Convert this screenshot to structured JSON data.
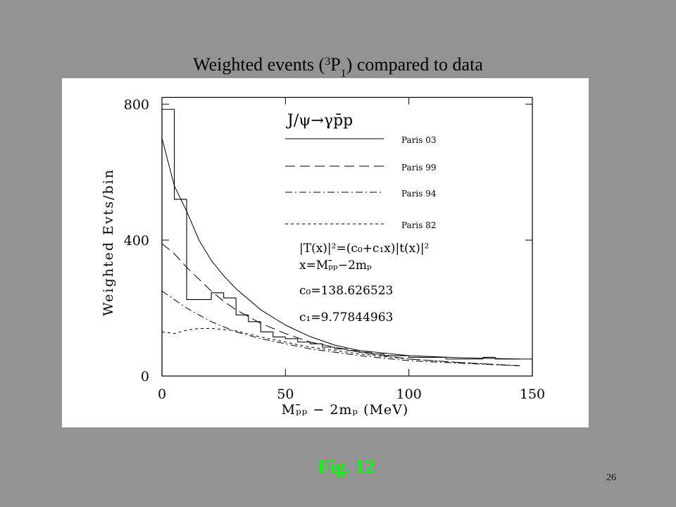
{
  "slide": {
    "title": [
      "Weighted events (",
      "3",
      "P",
      "1",
      ") compared to data"
    ],
    "caption": "Fig. 12",
    "page_number": "26"
  },
  "chart_data": {
    "type": "histogram",
    "x_label": "Mₚ̄ₚ − 2mₚ (MeV)",
    "y_label": "Weighted Evts/bin",
    "bins": [
      0,
      5,
      10,
      15,
      20,
      25,
      30,
      35,
      40,
      45,
      50,
      55,
      60,
      65,
      70,
      75,
      80,
      85,
      90,
      95,
      100,
      105,
      110,
      115,
      120,
      125,
      130,
      135,
      140,
      145,
      150
    ],
    "values": [
      785,
      520,
      225,
      225,
      245,
      230,
      180,
      160,
      130,
      115,
      110,
      100,
      95,
      85,
      80,
      75,
      70,
      65,
      60,
      60,
      55,
      55,
      55,
      50,
      50,
      50,
      55,
      50,
      50,
      50
    ],
    "color": "#000000",
    "legend_title": "J/ψ→γp̄p",
    "curve_x": [
      0,
      5,
      10,
      15,
      20,
      25,
      30,
      40,
      50,
      60,
      70,
      80,
      100,
      120,
      145
    ],
    "series": [
      {
        "name": "Paris 03",
        "color": "#000000",
        "dash": "none",
        "values": [
          700,
          560,
          485,
          400,
          340,
          295,
          257,
          195,
          150,
          116,
          91,
          75,
          60,
          54,
          50
        ]
      },
      {
        "name": "Paris 99",
        "color": "#000000",
        "dash": "14 7",
        "values": [
          390,
          360,
          320,
          285,
          250,
          220,
          195,
          155,
          125,
          100,
          85,
          70,
          50,
          40,
          30
        ]
      },
      {
        "name": "Paris 94",
        "color": "#000000",
        "dash": "10 4 2 4",
        "values": [
          250,
          225,
          200,
          180,
          160,
          145,
          130,
          110,
          95,
          80,
          70,
          60,
          45,
          38,
          30
        ]
      },
      {
        "name": "Paris 82",
        "color": "#000000",
        "dash": "4 4",
        "values": [
          130,
          125,
          135,
          140,
          140,
          137,
          133,
          115,
          100,
          85,
          75,
          65,
          50,
          40,
          30
        ]
      }
    ],
    "annotations": [
      "|T(x)|²=(c₀+c₁x)|t(x)|²",
      "x=Mₚ̄ₚ−2mₚ",
      "c₀=138.626523",
      "c₁=9.77844963"
    ],
    "xlim": [
      0,
      150
    ],
    "ylim": [
      0,
      820
    ],
    "xticks": [
      0,
      50,
      100,
      150
    ],
    "yticks": [
      0,
      400,
      800
    ]
  }
}
